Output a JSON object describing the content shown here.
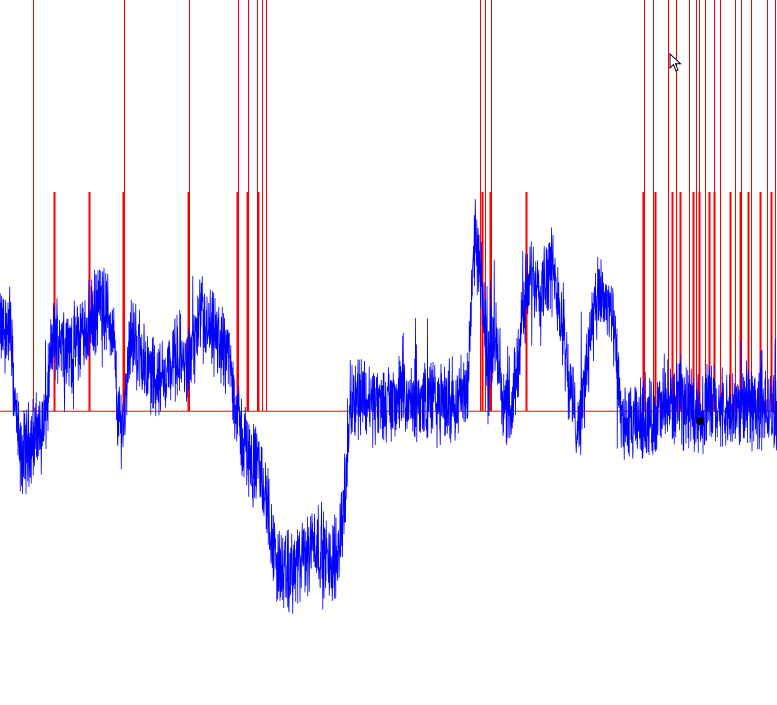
{
  "colors": {
    "background": "#ffffff",
    "signal": "#0000ff",
    "marker": "#ff0000",
    "baseline": "#ff0000",
    "cursor_dot": "#000000"
  },
  "icons": {
    "cursor": "mouse-pointer-icon"
  },
  "chart_data": {
    "type": "line",
    "title": "",
    "xlabel": "",
    "ylabel": "",
    "grid": false,
    "legend": "none",
    "xlim": [
      0,
      777
    ],
    "ylim": [
      -300,
      420
    ],
    "baseline": {
      "y": 0
    },
    "series": [
      {
        "name": "",
        "color": "#0000ff",
        "profile": [
          [
            0,
            80
          ],
          [
            10,
            90
          ],
          [
            14,
            20
          ],
          [
            20,
            -50
          ],
          [
            30,
            -30
          ],
          [
            40,
            -20
          ],
          [
            46,
            -5
          ],
          [
            52,
            70
          ],
          [
            60,
            80
          ],
          [
            70,
            60
          ],
          [
            80,
            75
          ],
          [
            90,
            90
          ],
          [
            100,
            110
          ],
          [
            108,
            100
          ],
          [
            114,
            70
          ],
          [
            118,
            -10
          ],
          [
            124,
            -10
          ],
          [
            130,
            80
          ],
          [
            140,
            60
          ],
          [
            150,
            40
          ],
          [
            160,
            30
          ],
          [
            170,
            45
          ],
          [
            180,
            60
          ],
          [
            186,
            40
          ],
          [
            192,
            60
          ],
          [
            200,
            90
          ],
          [
            210,
            80
          ],
          [
            220,
            70
          ],
          [
            228,
            60
          ],
          [
            234,
            20
          ],
          [
            240,
            -20
          ],
          [
            250,
            -50
          ],
          [
            260,
            -60
          ],
          [
            268,
            -100
          ],
          [
            275,
            -150
          ],
          [
            285,
            -170
          ],
          [
            295,
            -160
          ],
          [
            305,
            -150
          ],
          [
            315,
            -130
          ],
          [
            322,
            -140
          ],
          [
            330,
            -160
          ],
          [
            338,
            -140
          ],
          [
            346,
            -80
          ],
          [
            350,
            10
          ],
          [
            360,
            20
          ],
          [
            370,
            10
          ],
          [
            380,
            5
          ],
          [
            390,
            10
          ],
          [
            400,
            15
          ],
          [
            410,
            5
          ],
          [
            420,
            10
          ],
          [
            430,
            15
          ],
          [
            440,
            5
          ],
          [
            450,
            10
          ],
          [
            460,
            15
          ],
          [
            468,
            30
          ],
          [
            475,
            180
          ],
          [
            482,
            120
          ],
          [
            488,
            50
          ],
          [
            494,
            80
          ],
          [
            500,
            40
          ],
          [
            506,
            0
          ],
          [
            512,
            -10
          ],
          [
            518,
            60
          ],
          [
            526,
            120
          ],
          [
            534,
            140
          ],
          [
            542,
            130
          ],
          [
            550,
            150
          ],
          [
            558,
            120
          ],
          [
            564,
            80
          ],
          [
            570,
            20
          ],
          [
            576,
            -10
          ],
          [
            582,
            0
          ],
          [
            590,
            80
          ],
          [
            600,
            120
          ],
          [
            608,
            110
          ],
          [
            614,
            80
          ],
          [
            618,
            30
          ],
          [
            622,
            -10
          ],
          [
            630,
            -20
          ],
          [
            640,
            -10
          ],
          [
            650,
            -10
          ],
          [
            660,
            0
          ],
          [
            670,
            5
          ],
          [
            680,
            10
          ],
          [
            690,
            5
          ],
          [
            700,
            0
          ],
          [
            710,
            10
          ],
          [
            720,
            0
          ],
          [
            730,
            -5
          ],
          [
            740,
            5
          ],
          [
            750,
            10
          ],
          [
            760,
            0
          ],
          [
            777,
            0
          ]
        ]
      }
    ],
    "markers": {
      "color": "#ff0000",
      "full_height": [
        33,
        124,
        189,
        238,
        248,
        257,
        262,
        266,
        480,
        485,
        491,
        644,
        653,
        668,
        676,
        689,
        696,
        699,
        705,
        714,
        720,
        735,
        741,
        751,
        767,
        775
      ],
      "medium_height": [
        54,
        89,
        123,
        188,
        237,
        247,
        258,
        482,
        490,
        526,
        643,
        655,
        672,
        680,
        693,
        699,
        709,
        714,
        730,
        740,
        748,
        760,
        771
      ]
    },
    "cursor": {
      "x": 700,
      "y": -10
    }
  }
}
